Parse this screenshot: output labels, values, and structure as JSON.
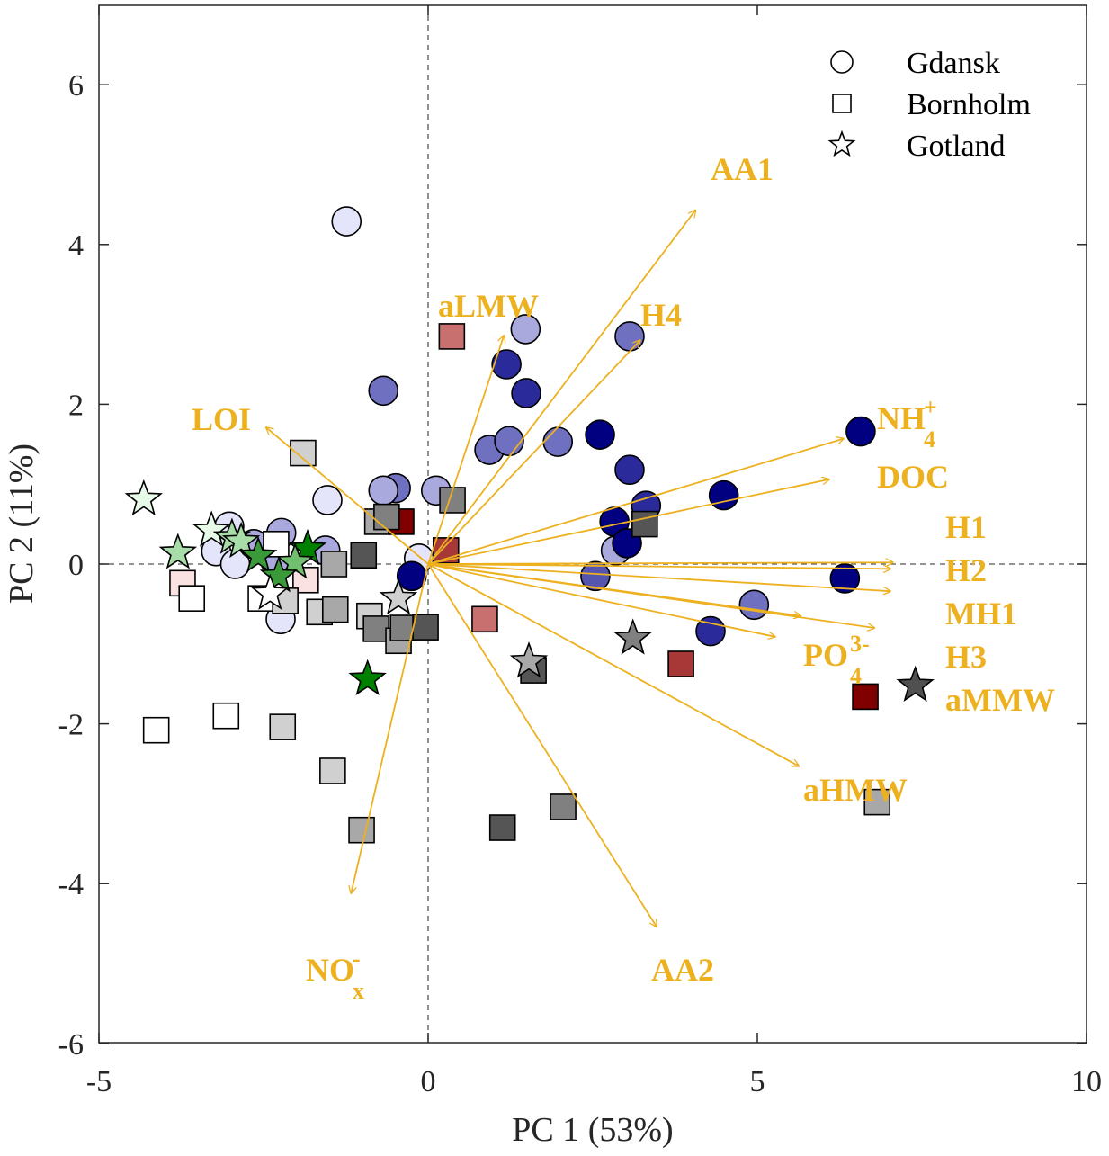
{
  "chart_data": {
    "type": "scatter",
    "title": "",
    "xlabel": "PC 1 (53%)",
    "ylabel": "PC 2 (11%)",
    "xlim": [
      -5,
      10
    ],
    "ylim": [
      -6,
      7
    ],
    "xticks": [
      -5,
      0,
      5,
      10
    ],
    "yticks": [
      -6,
      -4,
      -2,
      0,
      2,
      4,
      6
    ],
    "xtick_labels": [
      "-5",
      "0",
      "5",
      "10"
    ],
    "ytick_labels": [
      "-6",
      "-4",
      "-2",
      "0",
      "2",
      "4",
      "6"
    ],
    "grid": false,
    "zero_lines": "dashed",
    "legend": {
      "placement": "top-right",
      "entries": [
        {
          "label": "Gdansk",
          "marker": "circle"
        },
        {
          "label": "Bornholm",
          "marker": "square"
        },
        {
          "label": "Gotland",
          "marker": "star"
        }
      ]
    },
    "vector_color": "#EDB120",
    "series": [
      {
        "name": "Gdansk",
        "marker": "circle",
        "points": [
          {
            "x": -1.24,
            "y": 4.29,
            "c": "#e4e4fa"
          },
          {
            "x": 1.48,
            "y": 2.94,
            "c": "#a9a9dd"
          },
          {
            "x": 3.06,
            "y": 2.85,
            "c": "#7070c0"
          },
          {
            "x": -0.68,
            "y": 2.17,
            "c": "#7070c0"
          },
          {
            "x": 1.19,
            "y": 2.5,
            "c": "#2a2a9a"
          },
          {
            "x": 1.49,
            "y": 2.14,
            "c": "#2a2a9a"
          },
          {
            "x": 0.93,
            "y": 1.43,
            "c": "#7070c0"
          },
          {
            "x": 1.23,
            "y": 1.54,
            "c": "#7070c0"
          },
          {
            "x": 1.97,
            "y": 1.53,
            "c": "#7070c0"
          },
          {
            "x": 2.61,
            "y": 1.62,
            "c": "#000080"
          },
          {
            "x": 3.06,
            "y": 1.18,
            "c": "#2a2a9a"
          },
          {
            "x": 6.57,
            "y": 1.66,
            "c": "#000080"
          },
          {
            "x": 4.49,
            "y": 0.86,
            "c": "#000080"
          },
          {
            "x": 3.31,
            "y": 0.73,
            "c": "#2a2a9a"
          },
          {
            "x": 2.83,
            "y": 0.53,
            "c": "#000080"
          },
          {
            "x": 2.85,
            "y": 0.17,
            "c": "#a9a9dd"
          },
          {
            "x": 3.02,
            "y": 0.26,
            "c": "#000080"
          },
          {
            "x": 2.54,
            "y": -0.15,
            "c": "#5555b0"
          },
          {
            "x": 6.33,
            "y": -0.18,
            "c": "#000080"
          },
          {
            "x": 4.95,
            "y": -0.51,
            "c": "#7070c0"
          },
          {
            "x": 4.29,
            "y": -0.84,
            "c": "#2a2a9a"
          },
          {
            "x": 0.12,
            "y": 0.92,
            "c": "#a9a9dd"
          },
          {
            "x": -0.49,
            "y": 0.95,
            "c": "#7070c0"
          },
          {
            "x": -0.68,
            "y": 0.92,
            "c": "#a9a9dd"
          },
          {
            "x": -1.53,
            "y": 0.8,
            "c": "#e4e4fa"
          },
          {
            "x": -0.14,
            "y": 0.07,
            "c": "#e4e4fa"
          },
          {
            "x": -0.25,
            "y": -0.15,
            "c": "#000080"
          },
          {
            "x": -1.56,
            "y": 0.17,
            "c": "#a9a9dd"
          },
          {
            "x": -2.23,
            "y": 0.39,
            "c": "#a9a9dd"
          },
          {
            "x": -3.02,
            "y": 0.47,
            "c": "#e4e4fa"
          },
          {
            "x": -3.22,
            "y": 0.16,
            "c": "#e4e4fa"
          },
          {
            "x": -2.93,
            "y": 0.0,
            "c": "#e4e4fa"
          },
          {
            "x": -2.65,
            "y": 0.25,
            "c": "#a9a9dd"
          },
          {
            "x": -2.24,
            "y": -0.69,
            "c": "#e4e4fa"
          },
          {
            "x": -2.33,
            "y": 0.05,
            "c": "#a9a9dd"
          }
        ]
      },
      {
        "name": "Bornholm",
        "marker": "square",
        "points": [
          {
            "x": 0.36,
            "y": 2.85,
            "c": "#c87070"
          },
          {
            "x": -1.9,
            "y": 1.39,
            "c": "#d0d0d0"
          },
          {
            "x": 0.37,
            "y": 0.8,
            "c": "#808080"
          },
          {
            "x": -0.77,
            "y": 0.53,
            "c": "#a8a8a8"
          },
          {
            "x": -0.41,
            "y": 0.53,
            "c": "#800000"
          },
          {
            "x": -0.63,
            "y": 0.59,
            "c": "#808080"
          },
          {
            "x": 0.27,
            "y": 0.17,
            "c": "#a83838"
          },
          {
            "x": 3.29,
            "y": 0.5,
            "c": "#555555"
          },
          {
            "x": -0.98,
            "y": 0.11,
            "c": "#555555"
          },
          {
            "x": -1.43,
            "y": 0.0,
            "c": "#a8a8a8"
          },
          {
            "x": -2.31,
            "y": 0.25,
            "c": "#ffffff"
          },
          {
            "x": -1.86,
            "y": -0.2,
            "c": "#fbe2e2"
          },
          {
            "x": -2.54,
            "y": -0.43,
            "c": "#ffffff"
          },
          {
            "x": -2.17,
            "y": -0.46,
            "c": "#d0d0d0"
          },
          {
            "x": -3.73,
            "y": -0.24,
            "c": "#fbe2e2"
          },
          {
            "x": -3.59,
            "y": -0.43,
            "c": "#ffffff"
          },
          {
            "x": -1.65,
            "y": -0.6,
            "c": "#d0d0d0"
          },
          {
            "x": -1.41,
            "y": -0.57,
            "c": "#a8a8a8"
          },
          {
            "x": -0.89,
            "y": -0.65,
            "c": "#d0d0d0"
          },
          {
            "x": -0.79,
            "y": -0.81,
            "c": "#808080"
          },
          {
            "x": -0.45,
            "y": -0.96,
            "c": "#a8a8a8"
          },
          {
            "x": -0.38,
            "y": -0.8,
            "c": "#808080"
          },
          {
            "x": -0.04,
            "y": -0.79,
            "c": "#555555"
          },
          {
            "x": 0.86,
            "y": -0.69,
            "c": "#c87070"
          },
          {
            "x": 1.6,
            "y": -1.33,
            "c": "#555555"
          },
          {
            "x": 3.84,
            "y": -1.25,
            "c": "#a83838"
          },
          {
            "x": 6.64,
            "y": -1.66,
            "c": "#800000"
          },
          {
            "x": -4.13,
            "y": -2.08,
            "c": "#ffffff"
          },
          {
            "x": -3.07,
            "y": -1.9,
            "c": "#ffffff"
          },
          {
            "x": -2.21,
            "y": -2.04,
            "c": "#d0d0d0"
          },
          {
            "x": -1.45,
            "y": -2.59,
            "c": "#d0d0d0"
          },
          {
            "x": -1.01,
            "y": -3.33,
            "c": "#a8a8a8"
          },
          {
            "x": 1.13,
            "y": -3.3,
            "c": "#555555"
          },
          {
            "x": 2.05,
            "y": -3.04,
            "c": "#808080"
          },
          {
            "x": 6.82,
            "y": -2.98,
            "c": "#a8a8a8"
          }
        ]
      },
      {
        "name": "Gotland",
        "marker": "star",
        "points": [
          {
            "x": -4.32,
            "y": 0.81,
            "c": "#e8fbe8"
          },
          {
            "x": -3.8,
            "y": 0.14,
            "c": "#a8dca8"
          },
          {
            "x": -3.29,
            "y": 0.42,
            "c": "#e8fbe8"
          },
          {
            "x": -2.98,
            "y": 0.33,
            "c": "#a8dca8"
          },
          {
            "x": -2.84,
            "y": 0.28,
            "c": "#a8dca8"
          },
          {
            "x": -2.58,
            "y": 0.1,
            "c": "#3a9a3a"
          },
          {
            "x": -1.83,
            "y": 0.19,
            "c": "#008000"
          },
          {
            "x": -2.02,
            "y": 0.02,
            "c": "#70c070"
          },
          {
            "x": -2.27,
            "y": -0.15,
            "c": "#3a9a3a"
          },
          {
            "x": -2.4,
            "y": -0.37,
            "c": "#ffffff"
          },
          {
            "x": -0.45,
            "y": -0.43,
            "c": "#d0d0d0"
          },
          {
            "x": -0.92,
            "y": -1.44,
            "c": "#008000"
          },
          {
            "x": 1.53,
            "y": -1.22,
            "c": "#a8a8a8"
          },
          {
            "x": 3.11,
            "y": -0.93,
            "c": "#808080"
          },
          {
            "x": 7.4,
            "y": -1.52,
            "c": "#505050"
          }
        ]
      }
    ],
    "vectors": [
      {
        "name": "AA1",
        "label": "AA1",
        "sub": "",
        "sup": "",
        "x": 4.06,
        "y": 4.43
      },
      {
        "name": "aLMW",
        "label": "aLMW",
        "sub": "",
        "sup": "",
        "x": 1.15,
        "y": 2.86
      },
      {
        "name": "H4",
        "label": "H4",
        "sub": "",
        "sup": "",
        "x": 3.22,
        "y": 2.8
      },
      {
        "name": "LOI",
        "label": "LOI",
        "sub": "",
        "sup": "",
        "x": -2.46,
        "y": 1.71
      },
      {
        "name": "NH4",
        "label": "NH",
        "sub": "4",
        "sup": "+",
        "x": 6.31,
        "y": 1.57
      },
      {
        "name": "DOC",
        "label": "DOC",
        "sub": "",
        "sup": "",
        "x": 6.09,
        "y": 1.06
      },
      {
        "name": "H1",
        "label": "H1",
        "sub": "",
        "sup": "",
        "x": 7.06,
        "y": 0.02
      },
      {
        "name": "H2",
        "label": "H2",
        "sub": "",
        "sup": "",
        "x": 7.02,
        "y": -0.06
      },
      {
        "name": "MH1",
        "label": "MH1",
        "sub": "",
        "sup": "",
        "x": 7.02,
        "y": -0.34
      },
      {
        "name": "H3",
        "label": "H3",
        "sub": "",
        "sup": "",
        "x": 6.78,
        "y": -0.8
      },
      {
        "name": "PO4",
        "label": "PO",
        "sub": "4",
        "sup": "3-",
        "x": 5.27,
        "y": -0.91
      },
      {
        "name": "aMMW",
        "label": "aMMW",
        "sub": "",
        "sup": "",
        "x": 5.66,
        "y": -0.65
      },
      {
        "name": "aHMW",
        "label": "aHMW",
        "sub": "",
        "sup": "",
        "x": 5.63,
        "y": -2.53
      },
      {
        "name": "AA2",
        "label": "AA2",
        "sub": "",
        "sup": "",
        "x": 3.47,
        "y": -4.54
      },
      {
        "name": "NOx",
        "label": "NO",
        "sub": "x",
        "sup": "-",
        "x": -1.17,
        "y": -4.12
      }
    ]
  }
}
